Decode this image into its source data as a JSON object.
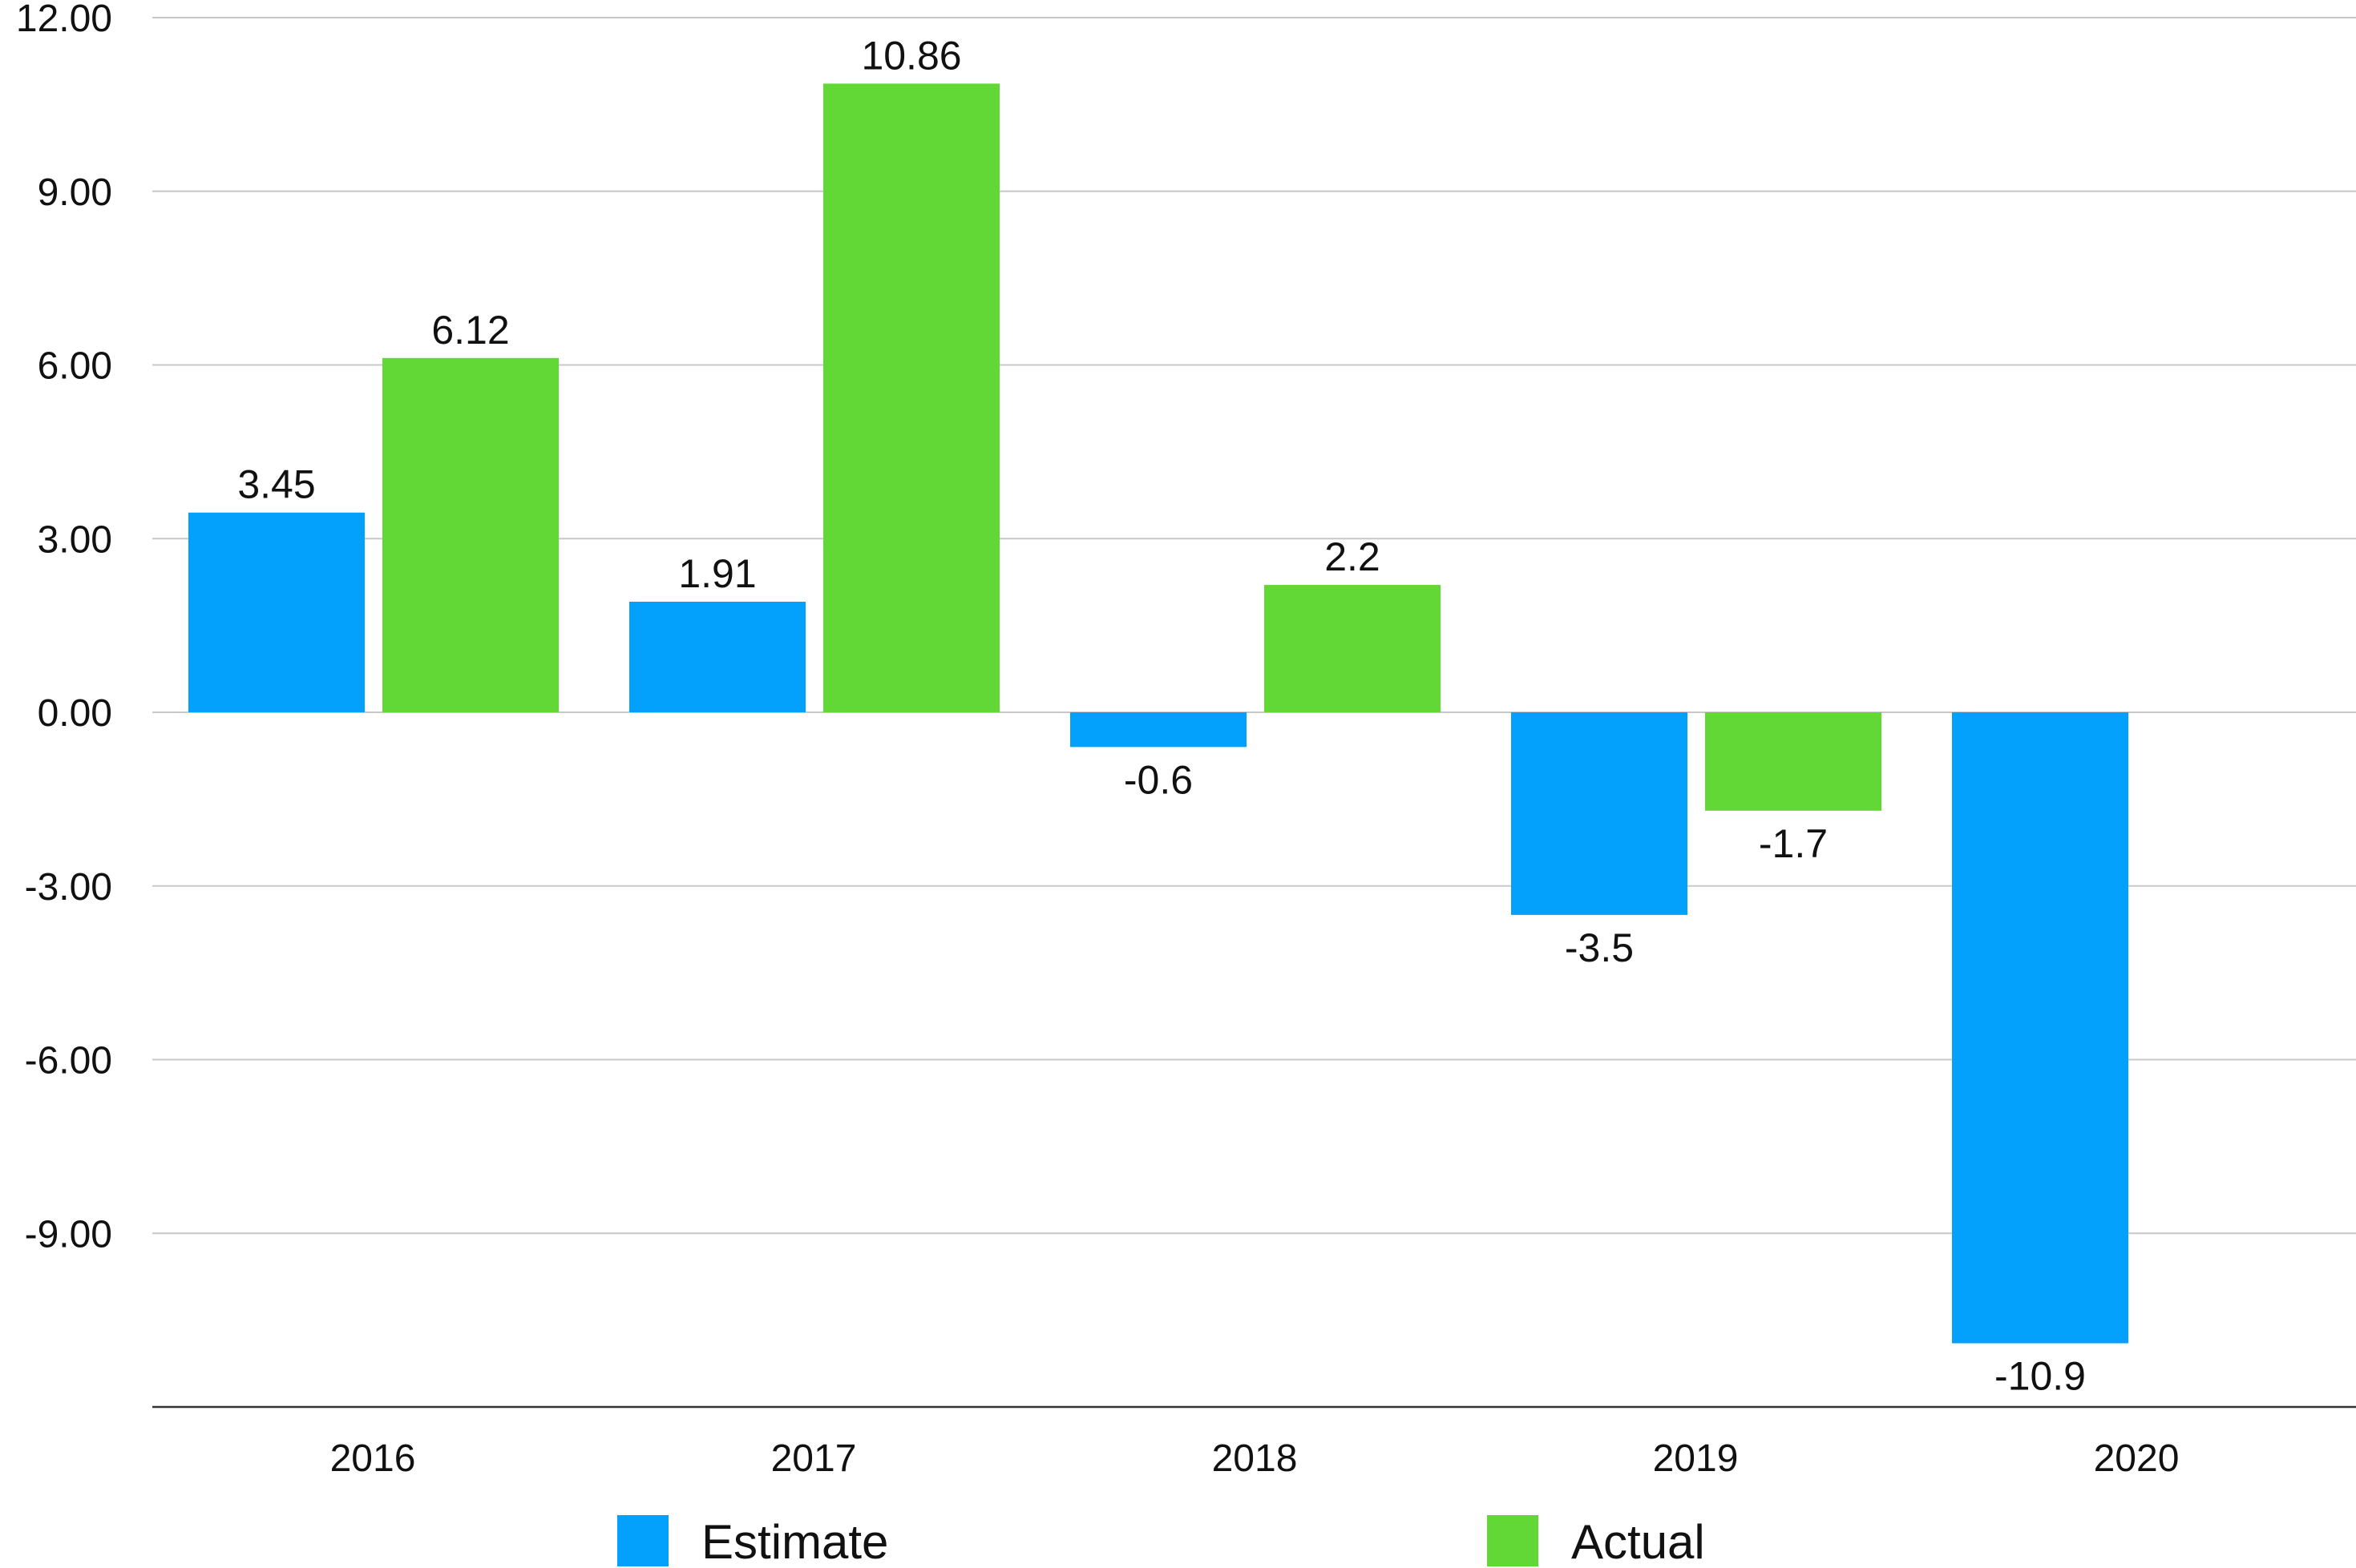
{
  "chart_data": {
    "type": "bar",
    "categories": [
      "2016",
      "2017",
      "2018",
      "2019",
      "2020"
    ],
    "series": [
      {
        "name": "Estimate",
        "color": "#03a1fc",
        "values": [
          3.45,
          1.91,
          -0.6,
          -3.5,
          -10.9
        ],
        "labels": [
          "3.45",
          "1.91",
          "-0.6",
          "-3.5",
          "-10.9"
        ]
      },
      {
        "name": "Actual",
        "color": "#61d836",
        "values": [
          6.12,
          10.86,
          2.2,
          -1.7,
          null
        ],
        "labels": [
          "6.12",
          "10.86",
          "2.2",
          "-1.7",
          ""
        ]
      }
    ],
    "yticks": [
      12,
      9,
      6,
      3,
      0,
      -3,
      -6,
      -9
    ],
    "ytick_labels": [
      "12.00",
      "9.00",
      "6.00",
      "3.00",
      "0.00",
      "-3.00",
      "-6.00",
      "-9.00"
    ],
    "ylim": [
      -12,
      12
    ],
    "title": "",
    "xlabel": "",
    "ylabel": "",
    "grid": true,
    "legend_position": "bottom"
  }
}
